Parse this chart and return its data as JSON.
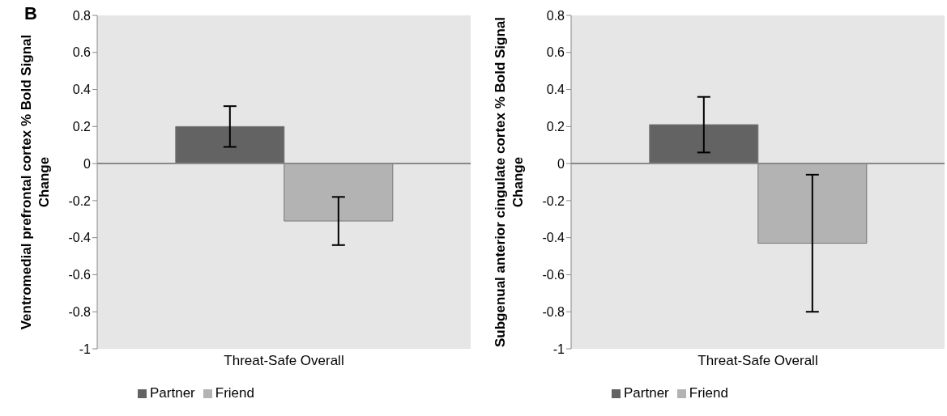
{
  "chart_data": [
    {
      "type": "bar",
      "ylabel": "Ventromedial prefrontal cortex % Bold Signal Change",
      "annotations": [
        "B"
      ],
      "categories": [
        "Threat-Safe Overall"
      ],
      "series": [
        {
          "name": "Partner",
          "color": "#636363",
          "values": [
            0.2
          ],
          "errors": [
            0.11
          ]
        },
        {
          "name": "Friend",
          "color": "#b3b3b3",
          "values": [
            -0.31
          ],
          "errors": [
            0.13
          ]
        }
      ],
      "ylim": [
        -1,
        0.8
      ],
      "yticks": [
        -1,
        -0.8,
        -0.6,
        -0.4,
        -0.2,
        0,
        0.2,
        0.4,
        0.6,
        0.8
      ],
      "legend": "bottom"
    },
    {
      "type": "bar",
      "ylabel": "Subgenual anterior cingulate cortex % Bold Signal Change",
      "categories": [
        "Threat-Safe Overall"
      ],
      "series": [
        {
          "name": "Partner",
          "color": "#636363",
          "values": [
            0.21
          ],
          "errors": [
            0.15
          ]
        },
        {
          "name": "Friend",
          "color": "#b3b3b3",
          "values": [
            -0.43
          ],
          "errors": [
            0.37
          ]
        }
      ],
      "ylim": [
        -1,
        0.8
      ],
      "yticks": [
        -1,
        -0.8,
        -0.6,
        -0.4,
        -0.2,
        0,
        0.2,
        0.4,
        0.6,
        0.8
      ],
      "legend": "bottom"
    }
  ]
}
